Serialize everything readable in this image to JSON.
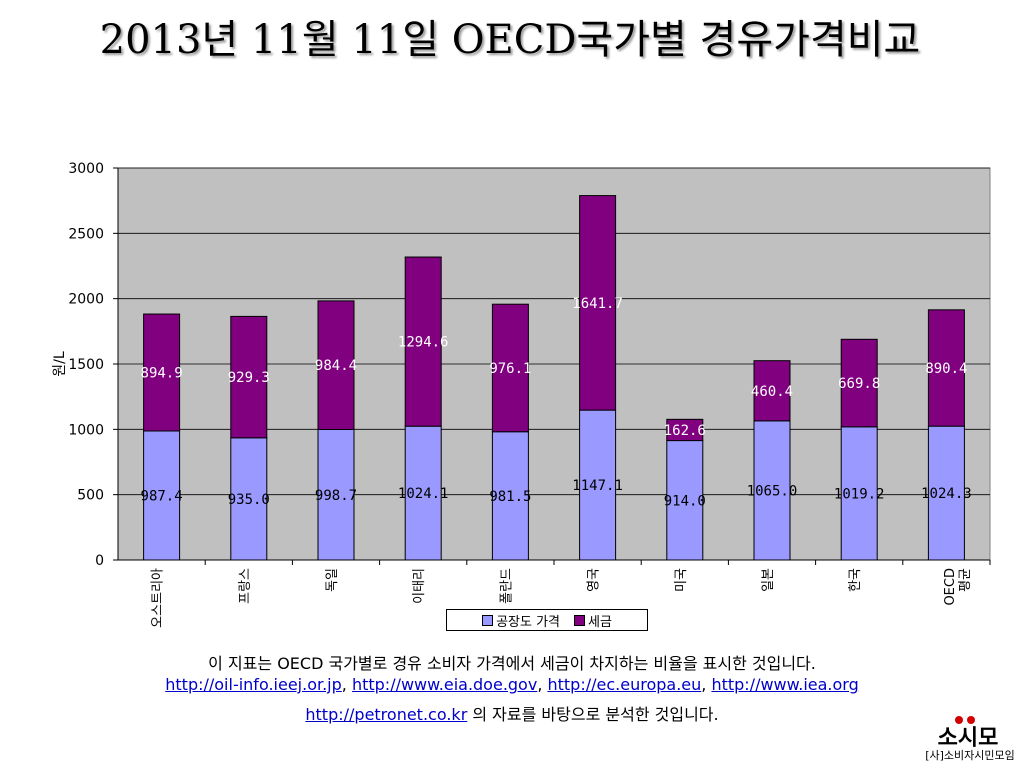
{
  "title": "2013년 11월 11일 OECD국가별 경유가격비교",
  "chart_data": {
    "type": "bar",
    "stacked": true,
    "categories": [
      "오스트리아",
      "프랑스",
      "독일",
      "이태리",
      "폴란드",
      "영국",
      "미국",
      "일본",
      "한국",
      "OECD 평균"
    ],
    "series": [
      {
        "name": "공장도 가격",
        "values": [
          987.4,
          935.0,
          998.7,
          1024.1,
          981.5,
          1147.1,
          914.0,
          1065.0,
          1019.2,
          1024.3
        ],
        "labels": [
          "987.4",
          "935.0",
          "998.7",
          "1024.1",
          "981.5",
          "1147.1",
          "914.0",
          "1065.0",
          "1019.2",
          "1024.3"
        ],
        "color": "#9999ff"
      },
      {
        "name": "세금",
        "values": [
          894.9,
          929.3,
          984.4,
          1294.6,
          976.1,
          1641.7,
          162.6,
          460.4,
          669.8,
          890.4
        ],
        "labels": [
          "894.9",
          "929.3",
          "984.4",
          "1294.6",
          "976.1",
          "1641.7",
          "162.6",
          "460.4",
          "669.8",
          "890.4"
        ],
        "color": "#800080"
      }
    ],
    "ylabel": "원/L",
    "ylim": [
      0,
      3000
    ],
    "yticks": [
      "0",
      "500",
      "1000",
      "1500",
      "2000",
      "2500",
      "3000"
    ],
    "grid": true,
    "legend_position": "bottom"
  },
  "footer": {
    "line1": "이 지표는 OECD 국가별로 경유 소비자 가격에서 세금이 차지하는 비율을 표시한 것입니다.",
    "links": [
      "http://oil-info.ieej.or.jp",
      "http://www.eia.doe.gov",
      "http://ec.europa.eu",
      "http://www.iea.org",
      "http://petronet.co.kr"
    ],
    "sep": ", ",
    "line3_suffix": " 의 자료를 바탕으로 분석한 것입니다."
  },
  "logo": {
    "text": "[사]소비자시민모임",
    "mark": "소시모"
  },
  "colors": {
    "factory": "#9999ff",
    "tax": "#800080",
    "plot_bg": "#c0c0c0"
  }
}
